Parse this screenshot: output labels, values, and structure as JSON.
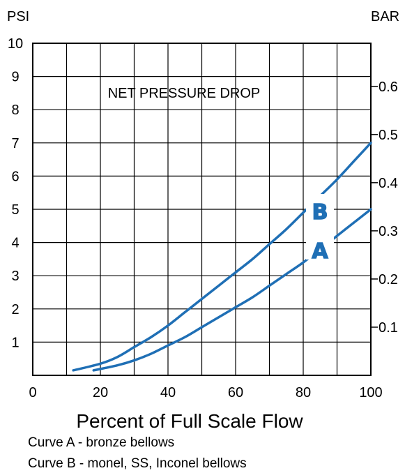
{
  "chart_data": {
    "type": "line",
    "title": "NET PRESSURE DROP",
    "xlabel": "Percent of Full Scale Flow",
    "ylabel_left": "PSI",
    "ylabel_right": "BAR",
    "xlim": [
      0,
      100
    ],
    "ylim": [
      0,
      10
    ],
    "x_ticks": [
      0,
      20,
      40,
      60,
      80,
      100
    ],
    "y_ticks_left": [
      1,
      2,
      3,
      4,
      5,
      6,
      7,
      8,
      9,
      10
    ],
    "y_ticks_right": [
      0.1,
      0.2,
      0.3,
      0.4,
      0.5,
      0.6
    ],
    "grid": true,
    "series": [
      {
        "name": "A",
        "color": "#1f6fb5",
        "x": [
          18,
          25,
          30,
          35,
          40,
          45,
          50,
          55,
          60,
          65,
          70,
          75,
          80,
          85,
          90,
          95,
          100
        ],
        "y": [
          0.15,
          0.3,
          0.45,
          0.65,
          0.9,
          1.15,
          1.45,
          1.75,
          2.05,
          2.35,
          2.7,
          3.05,
          3.4,
          3.8,
          4.2,
          4.6,
          5.0
        ]
      },
      {
        "name": "B",
        "color": "#1f6fb5",
        "x": [
          12,
          20,
          25,
          30,
          35,
          40,
          45,
          50,
          55,
          60,
          65,
          70,
          75,
          80,
          85,
          90,
          95,
          100
        ],
        "y": [
          0.15,
          0.35,
          0.55,
          0.85,
          1.15,
          1.5,
          1.9,
          2.3,
          2.7,
          3.1,
          3.5,
          3.95,
          4.4,
          4.9,
          5.4,
          5.9,
          6.45,
          7.0
        ]
      }
    ]
  },
  "captions": {
    "curve_a": "Curve A - bronze bellows",
    "curve_b": "Curve B - monel, SS, Inconel bellows"
  }
}
